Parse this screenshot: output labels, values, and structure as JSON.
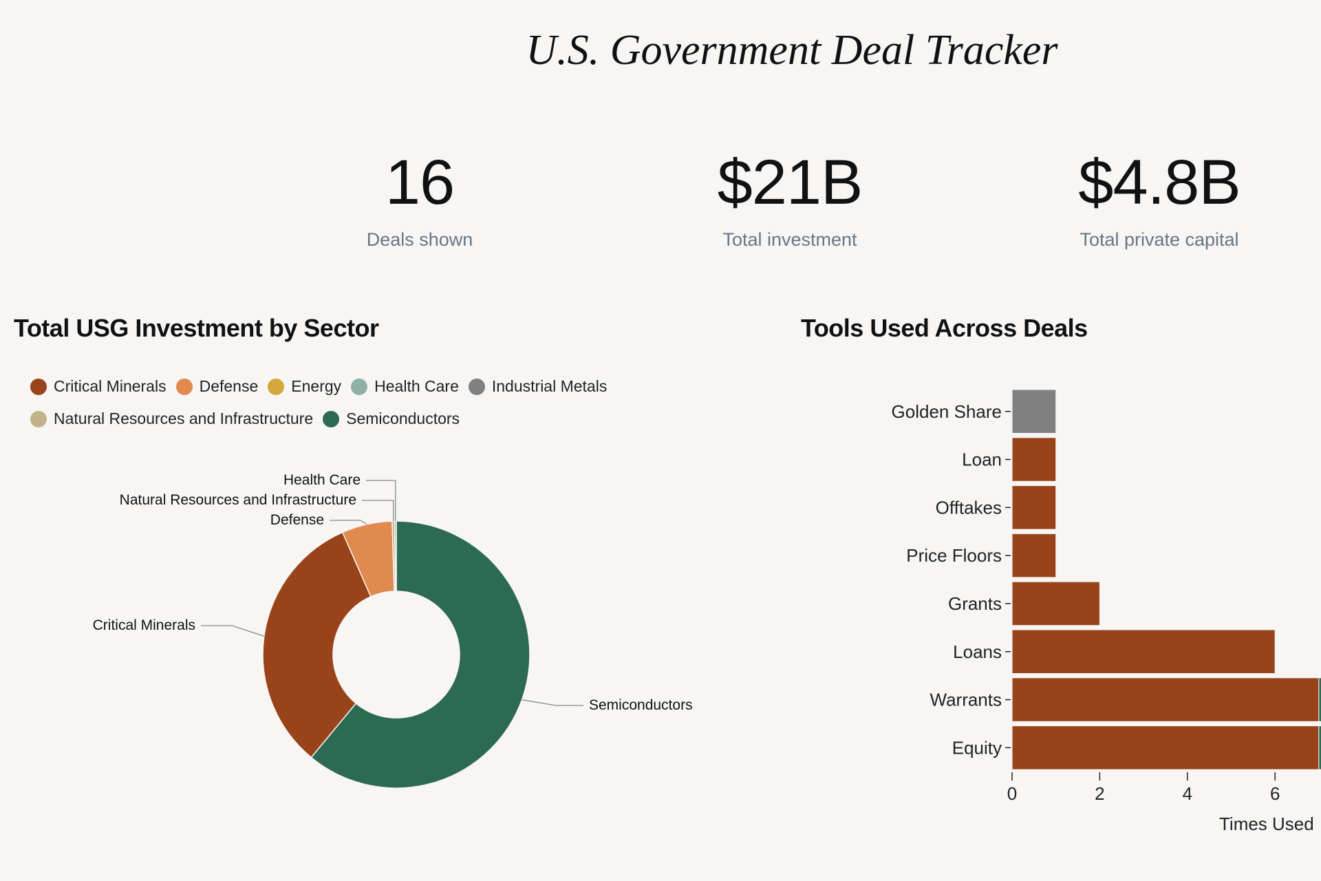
{
  "header": {
    "title": "U.S. Government Deal Tracker"
  },
  "stats": [
    {
      "value": "16",
      "label": "Deals shown"
    },
    {
      "value": "$21B",
      "label": "Total investment"
    },
    {
      "value": "$4.8B",
      "label": "Total private capital"
    }
  ],
  "sectors": {
    "heading": "Total USG Investment by Sector",
    "legend": [
      {
        "name": "Critical Minerals",
        "color": "#98431a"
      },
      {
        "name": "Defense",
        "color": "#e08a50"
      },
      {
        "name": "Energy",
        "color": "#d4a83a"
      },
      {
        "name": "Health Care",
        "color": "#8fb0a6"
      },
      {
        "name": "Industrial Metals",
        "color": "#808080"
      },
      {
        "name": "Natural Resources and Infrastructure",
        "color": "#c2b48a"
      },
      {
        "name": "Semiconductors",
        "color": "#2d6a54"
      }
    ]
  },
  "tools": {
    "heading": "Tools Used Across Deals"
  },
  "chart_data": [
    {
      "type": "pie",
      "variant": "donut",
      "title": "Total USG Investment by Sector",
      "unit": "share of total investment (%)",
      "slices": [
        {
          "name": "Semiconductors",
          "value": 61.0,
          "color": "#2d6a54"
        },
        {
          "name": "Critical Minerals",
          "value": 32.4,
          "color": "#98431a"
        },
        {
          "name": "Defense",
          "value": 6.1,
          "color": "#e08a50"
        },
        {
          "name": "Natural Resources and Infrastructure",
          "value": 0.3,
          "color": "#c2b48a"
        },
        {
          "name": "Health Care",
          "value": 0.2,
          "color": "#8fb0a6"
        }
      ],
      "legend_placement": "top"
    },
    {
      "type": "bar",
      "orientation": "horizontal",
      "stacked": true,
      "title": "Tools Used Across Deals",
      "xlabel": "Times Used",
      "categories": [
        "Golden Share",
        "Loan",
        "Offtakes",
        "Price Floors",
        "Grants",
        "Loans",
        "Warrants",
        "Equity"
      ],
      "x_ticks": [
        "0",
        "2",
        "4",
        "6"
      ],
      "series": [
        {
          "name": "Critical Minerals",
          "color": "#98431a",
          "values": [
            0,
            1,
            1,
            1,
            2,
            6,
            7,
            7
          ]
        },
        {
          "name": "Industrial Metals",
          "color": "#808080",
          "values": [
            1,
            0,
            0,
            0,
            0,
            0,
            0,
            0
          ]
        },
        {
          "name": "Semiconductors",
          "color": "#2d6a54",
          "values": [
            0,
            0,
            0,
            0,
            0,
            0,
            1,
            1
          ]
        }
      ],
      "grid": false
    }
  ]
}
